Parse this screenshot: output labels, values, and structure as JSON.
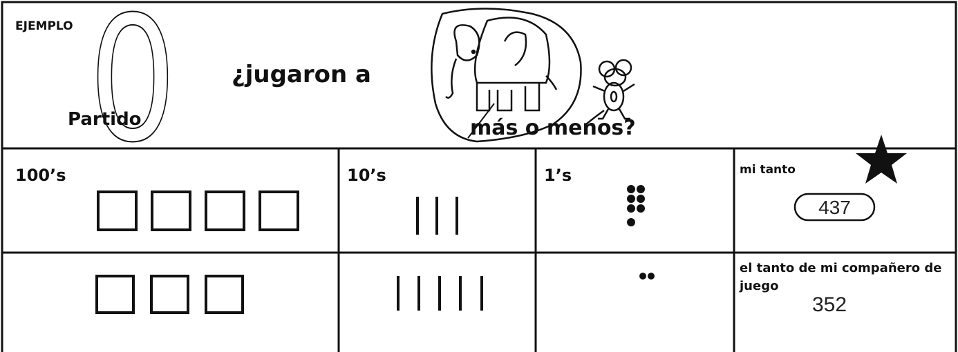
{
  "header": {
    "label": "EJEMPLO",
    "game_number": 0,
    "game_label": "Partido",
    "question_start": "¿jugaron a",
    "question_end": "más o menos?"
  },
  "table": {
    "columns": [
      "100’s",
      "10’s",
      "1’s"
    ],
    "rows": [
      {
        "label": "mi tanto",
        "score": 437
      },
      {
        "label": "el tanto de mi compañero de juego",
        "score": 352
      }
    ]
  }
}
